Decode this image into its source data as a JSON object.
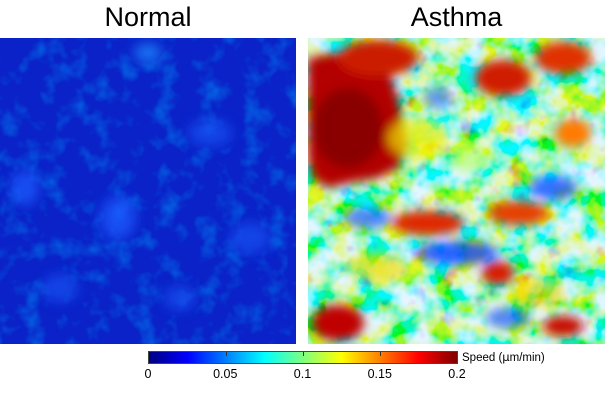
{
  "panels": {
    "left": {
      "title": "Normal",
      "speed_level": "low (~0.01-0.05 μm/min, mostly uniform)"
    },
    "right": {
      "title": "Asthma",
      "speed_level": "heterogeneous (0.02-0.2 μm/min)"
    }
  },
  "colorbar": {
    "label_prefix": "Speed (",
    "label_unit_greek": "μ",
    "label_suffix": "m/min)",
    "ticks": [
      "0",
      "0.05",
      "0.1",
      "0.15",
      "0.2"
    ],
    "tick_values": [
      0,
      0.05,
      0.1,
      0.15,
      0.2
    ],
    "range": [
      0,
      0.2
    ],
    "colormap": "jet",
    "colors": [
      "#00007f",
      "#0000ff",
      "#007fff",
      "#00ffff",
      "#7fff7f",
      "#ffff00",
      "#ff7f00",
      "#ff0000",
      "#7f0000"
    ]
  }
}
